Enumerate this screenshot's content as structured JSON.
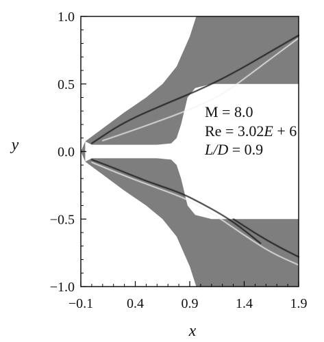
{
  "chart_data": {
    "type": "heatmap",
    "title": "",
    "xlabel": "x",
    "ylabel": "y",
    "xlim": [
      -0.1,
      1.9
    ],
    "ylim": [
      -1.0,
      1.0
    ],
    "x_ticks": [
      -0.1,
      0.4,
      0.9,
      1.4,
      1.9
    ],
    "x_tick_labels": [
      "−0.1",
      "0.4",
      "0.9",
      "1.4",
      "1.9"
    ],
    "y_ticks": [
      -1.0,
      -0.5,
      0.0,
      0.5,
      1.0
    ],
    "y_tick_labels": [
      "−1.0",
      "−0.5",
      "0.0",
      "0.5",
      "1.0"
    ],
    "grid": false,
    "colormap": "grayscale",
    "colors": {
      "field": "#7e7e7e",
      "dark_feature": "#1a1a1a",
      "light_feature": "#f2f2f2"
    },
    "annotations": [
      {
        "text": "M = 8.0"
      },
      {
        "text_plain": "Re = 3.02",
        "text_italic": "E",
        "text_tail": " + 6"
      },
      {
        "text_italic": "L/D",
        "text_tail": " = 0.9"
      }
    ],
    "domain_outer_upper": [
      [
        -0.06,
        0.075
      ],
      [
        0.1,
        0.17
      ],
      [
        0.3,
        0.29
      ],
      [
        0.5,
        0.4
      ],
      [
        0.65,
        0.5
      ],
      [
        0.78,
        0.63
      ],
      [
        0.9,
        0.85
      ],
      [
        0.96,
        1.0
      ],
      [
        1.9,
        1.0
      ]
    ],
    "domain_inner_upper": [
      [
        1.9,
        0.5
      ],
      [
        1.3,
        0.5
      ],
      [
        1.1,
        0.5
      ],
      [
        0.95,
        0.47
      ],
      [
        0.88,
        0.4
      ],
      [
        0.82,
        0.2
      ],
      [
        0.78,
        0.1
      ],
      [
        0.73,
        0.06
      ],
      [
        0.6,
        0.05
      ],
      [
        0.0,
        0.05
      ],
      [
        -0.06,
        0.075
      ]
    ],
    "domain_outer_lower": [
      [
        -0.06,
        -0.075
      ],
      [
        0.1,
        -0.17
      ],
      [
        0.3,
        -0.29
      ],
      [
        0.5,
        -0.4
      ],
      [
        0.65,
        -0.5
      ],
      [
        0.78,
        -0.63
      ],
      [
        0.9,
        -0.85
      ],
      [
        0.96,
        -1.0
      ],
      [
        1.9,
        -1.0
      ]
    ],
    "domain_inner_lower": [
      [
        1.9,
        -0.5
      ],
      [
        1.3,
        -0.5
      ],
      [
        1.1,
        -0.5
      ],
      [
        0.95,
        -0.47
      ],
      [
        0.88,
        -0.4
      ],
      [
        0.82,
        -0.2
      ],
      [
        0.78,
        -0.1
      ],
      [
        0.73,
        -0.06
      ],
      [
        0.6,
        -0.05
      ],
      [
        0.0,
        -0.05
      ],
      [
        -0.06,
        -0.075
      ]
    ],
    "nose": [
      [
        -0.06,
        0.075
      ],
      [
        -0.1,
        0.0
      ],
      [
        -0.06,
        -0.075
      ]
    ],
    "features": [
      {
        "name": "upper-shock",
        "tone": "dark",
        "points": [
          [
            0.0,
            0.06
          ],
          [
            0.3,
            0.22
          ],
          [
            0.7,
            0.36
          ],
          [
            1.0,
            0.46
          ],
          [
            1.3,
            0.58
          ],
          [
            1.6,
            0.72
          ],
          [
            1.9,
            0.86
          ]
        ]
      },
      {
        "name": "upper-shear",
        "tone": "light",
        "points": [
          [
            0.1,
            0.08
          ],
          [
            0.5,
            0.19
          ],
          [
            0.9,
            0.31
          ],
          [
            1.2,
            0.42
          ],
          [
            1.5,
            0.6
          ],
          [
            1.8,
            0.78
          ],
          [
            1.9,
            0.84
          ]
        ]
      },
      {
        "name": "lower-shock",
        "tone": "dark",
        "points": [
          [
            0.0,
            -0.06
          ],
          [
            0.2,
            -0.12
          ],
          [
            0.5,
            -0.22
          ],
          [
            0.8,
            -0.3
          ],
          [
            1.0,
            -0.38
          ],
          [
            1.2,
            -0.47
          ],
          [
            1.35,
            -0.55
          ],
          [
            1.55,
            -0.68
          ]
        ]
      },
      {
        "name": "lower-shear",
        "tone": "light",
        "points": [
          [
            0.0,
            -0.08
          ],
          [
            0.3,
            -0.18
          ],
          [
            0.6,
            -0.27
          ],
          [
            0.9,
            -0.36
          ],
          [
            1.15,
            -0.48
          ],
          [
            1.4,
            -0.62
          ],
          [
            1.65,
            -0.75
          ],
          [
            1.9,
            -0.84
          ]
        ]
      },
      {
        "name": "lower-shock-b",
        "tone": "dark",
        "points": [
          [
            1.3,
            -0.5
          ],
          [
            1.55,
            -0.63
          ],
          [
            1.75,
            -0.72
          ],
          [
            1.9,
            -0.78
          ]
        ]
      }
    ]
  }
}
